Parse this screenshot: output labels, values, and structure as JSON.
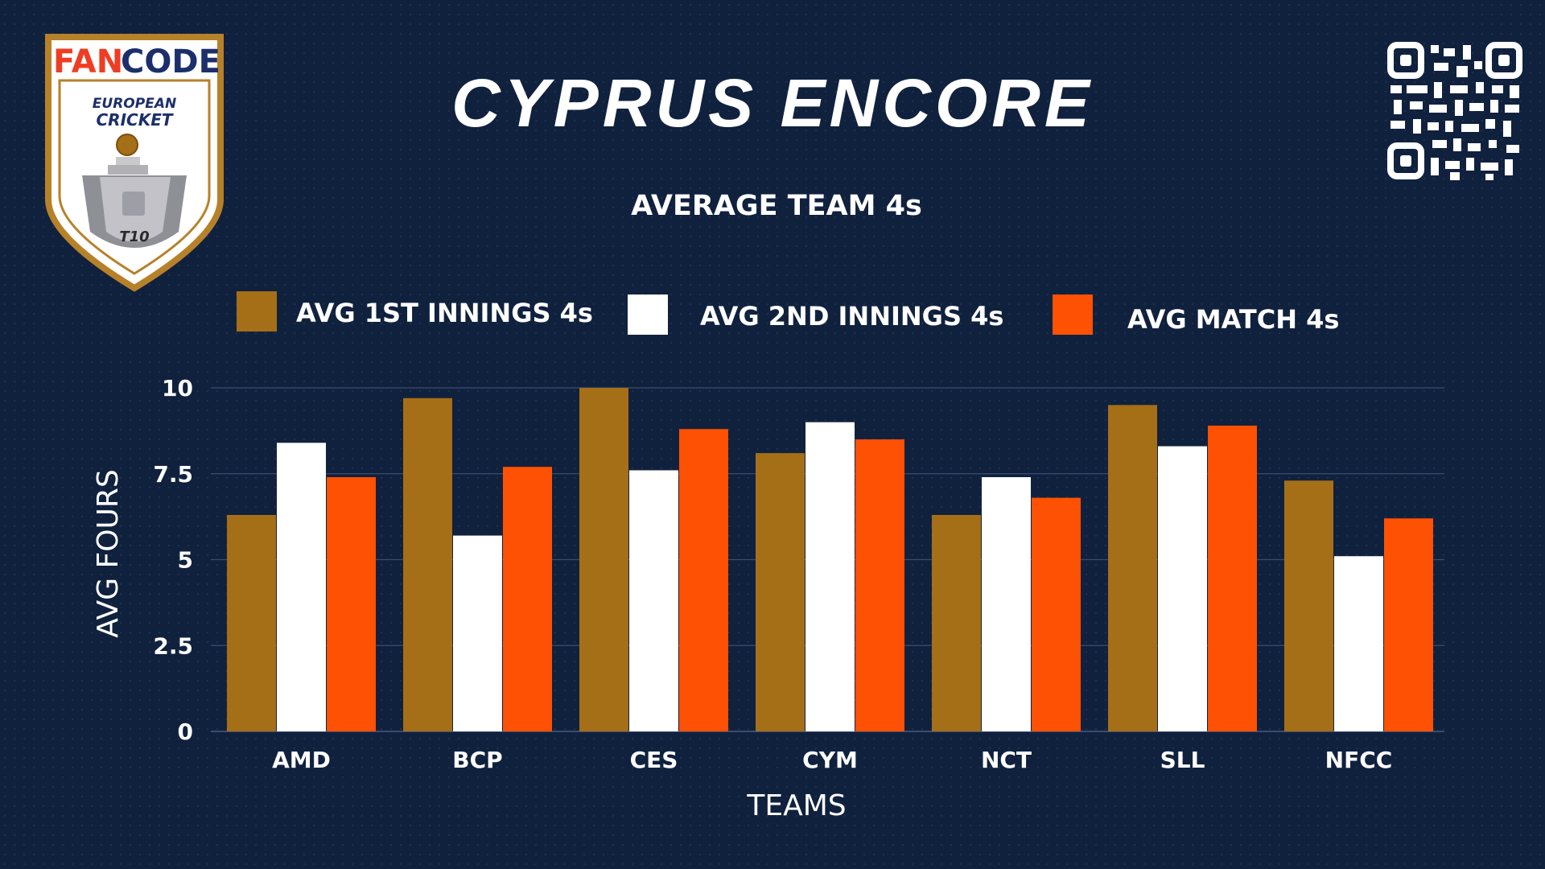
{
  "brand": {
    "logo_word_fan": "FAN",
    "logo_word_code": "CODE",
    "logo_line1": "EUROPEAN",
    "logo_line2": "CRICKET",
    "logo_badge": "T10",
    "icon": "trophy-shield-logo",
    "qr_icon": "qr-code-icon"
  },
  "colors": {
    "background": "#10213e",
    "series_1": "#a56f17",
    "series_2": "#ffffff",
    "series_3": "#ff5103",
    "gridline": "#3b4d6e"
  },
  "chart_data": {
    "type": "bar",
    "title": "CYPRUS ENCORE",
    "subtitle": "AVERAGE TEAM 4s",
    "xlabel": "TEAMS",
    "ylabel": "AVG FOURS",
    "categories": [
      "AMD",
      "BCP",
      "CES",
      "CYM",
      "NCT",
      "SLL",
      "NFCC"
    ],
    "series": [
      {
        "name": "AVG 1ST INNINGS 4s",
        "values": [
          6.3,
          9.7,
          10.0,
          8.1,
          6.3,
          9.5,
          7.3
        ]
      },
      {
        "name": "AVG 2ND INNINGS 4s",
        "values": [
          8.4,
          5.7,
          7.6,
          9.0,
          7.4,
          8.3,
          5.1
        ]
      },
      {
        "name": "AVG MATCH 4s",
        "values": [
          7.4,
          7.7,
          8.8,
          8.5,
          6.8,
          8.9,
          6.2
        ]
      }
    ],
    "yticks": [
      "0",
      "2.5",
      "5",
      "7.5",
      "10"
    ],
    "ylim": [
      0,
      10
    ],
    "grid": true,
    "legend": "top"
  }
}
